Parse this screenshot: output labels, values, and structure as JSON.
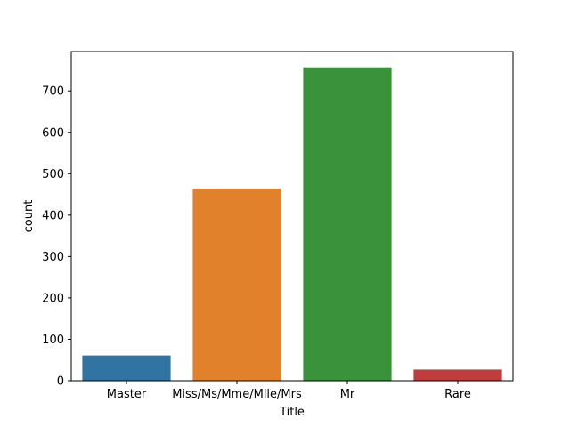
{
  "chart_data": {
    "type": "bar",
    "title": "",
    "xlabel": "Title",
    "ylabel": "count",
    "categories": [
      "Master",
      "Miss/Ms/Mme/Mlle/Mrs",
      "Mr",
      "Rare"
    ],
    "values": [
      61,
      464,
      757,
      27
    ],
    "colors": [
      "#3274a1",
      "#e1812c",
      "#3a923a",
      "#c03d3e"
    ],
    "ylim": [
      0,
      795
    ],
    "yticks": [
      0,
      100,
      200,
      300,
      400,
      500,
      600,
      700
    ],
    "ytick_labels": [
      "0",
      "100",
      "200",
      "300",
      "400",
      "500",
      "600",
      "700"
    ],
    "grid": false,
    "legend": "none"
  }
}
